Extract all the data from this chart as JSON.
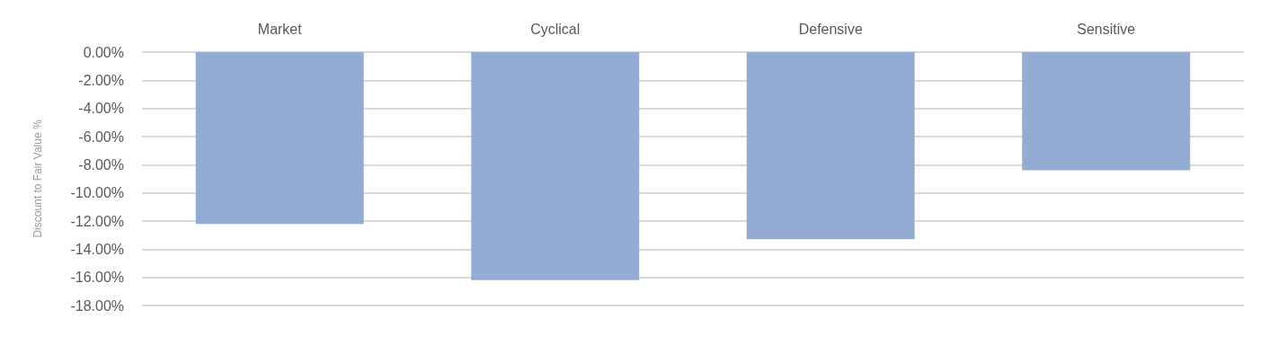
{
  "chart_data": {
    "type": "bar",
    "ylabel": "Discount to Fair Value %",
    "categories": [
      "Market",
      "Cyclical",
      "Defensive",
      "Sensitive"
    ],
    "series": [
      {
        "color": "#94acd4",
        "values": [
          -12.2,
          -16.2,
          -13.3,
          -8.4
        ]
      }
    ],
    "ylim": [
      -18,
      0
    ],
    "yticks": [
      {
        "value": 0,
        "label": "0.00%"
      },
      {
        "value": -2,
        "label": "-2.00%"
      },
      {
        "value": -4,
        "label": "-4.00%"
      },
      {
        "value": -6,
        "label": "-6.00%"
      },
      {
        "value": -8,
        "label": "-8.00%"
      },
      {
        "value": -10,
        "label": "-10.00%"
      },
      {
        "value": -12,
        "label": "-12.00%"
      },
      {
        "value": -14,
        "label": "-14.00%"
      },
      {
        "value": -16,
        "label": "-16.00%"
      },
      {
        "value": -18,
        "label": "-18.00%"
      }
    ],
    "grid": "y"
  }
}
